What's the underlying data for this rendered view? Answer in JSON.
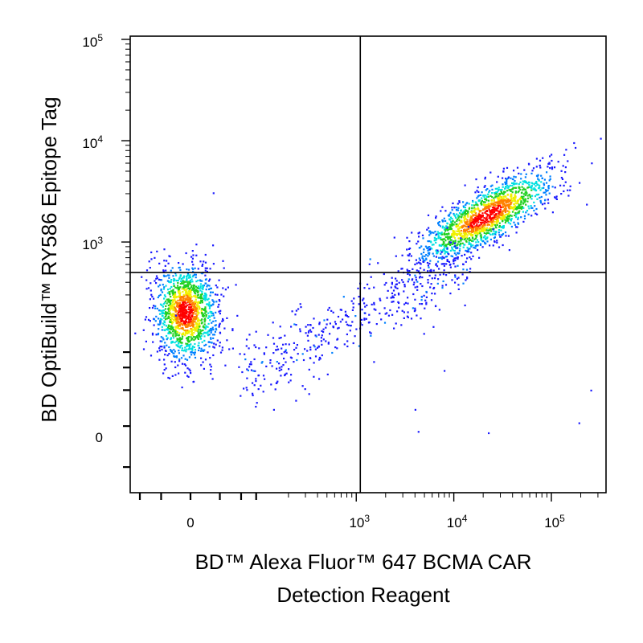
{
  "chart_data": {
    "type": "scatter",
    "title": "",
    "xlabel_line1": "BD™ Alexa Fluor™ 647 BCMA CAR",
    "xlabel_line2": "Detection Reagent",
    "ylabel": "BD OptiBuild™ RY586 Epitope Tag",
    "x_scale": "biexponential",
    "y_scale": "biexponential",
    "xlim": [
      -300,
      250000
    ],
    "ylim": [
      -250,
      130000
    ],
    "x_major_ticks": [
      {
        "value": 0,
        "base": "0",
        "exp": ""
      },
      {
        "value": 1000,
        "base": "10",
        "exp": "3"
      },
      {
        "value": 10000,
        "base": "10",
        "exp": "4"
      },
      {
        "value": 100000,
        "base": "10",
        "exp": "5"
      }
    ],
    "y_major_ticks": [
      {
        "value": 0,
        "base": "0",
        "exp": ""
      },
      {
        "value": 1000,
        "base": "10",
        "exp": "3"
      },
      {
        "value": 10000,
        "base": "10",
        "exp": "4"
      },
      {
        "value": 100000,
        "base": "10",
        "exp": "5"
      }
    ],
    "quadrant_gate": {
      "x": 1100,
      "y": 500
    },
    "populations": [
      {
        "name": "",
        "x_center": 0,
        "y_center": 200,
        "events": 1400,
        "color": "mixed"
      },
      {
        "name": "",
        "x_center": 38000,
        "y_center": 1800,
        "events": 1600,
        "color": "mixed"
      },
      {
        "name": "",
        "x_center": 3000,
        "y_center": 600,
        "events": 450,
        "color": "mixed"
      }
    ],
    "density_colors": [
      "#1a1aff",
      "#0080ff",
      "#00e0e0",
      "#20d020",
      "#f0f000",
      "#ff8000",
      "#ff0000"
    ],
    "grid": false,
    "legend": "none"
  }
}
